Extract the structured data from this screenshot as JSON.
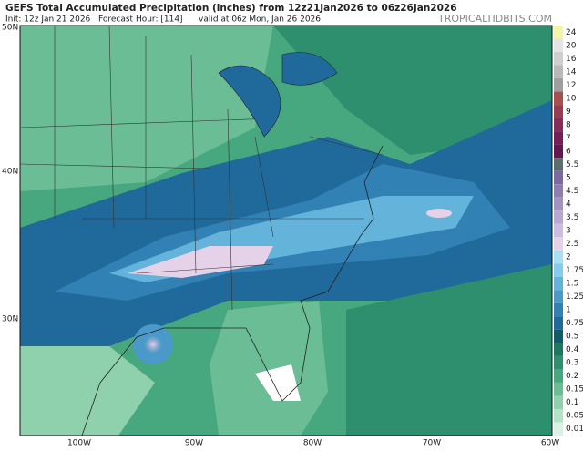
{
  "header": {
    "title": "GEFS Total Accumulated Precipitation (inches) from 12z21Jan2026 to 06z26Jan2026",
    "init": "Init: 12z Jan 21 2026",
    "forecast_hour": "Forecast Hour: [114]",
    "valid": "valid at 06z Mon, Jan 26 2026",
    "site": "TROPICALTIDBITS.COM"
  },
  "axes": {
    "lat_labels": [
      "50N",
      "40N",
      "30N"
    ],
    "lon_labels": [
      "100W",
      "90W",
      "80W",
      "70W",
      "60W"
    ]
  },
  "legend": {
    "levels": [
      24,
      20,
      16,
      14,
      12,
      10,
      9,
      8,
      7,
      6,
      5.5,
      5,
      4.5,
      4,
      3.5,
      3,
      2.5,
      2,
      1.75,
      1.5,
      1.25,
      1,
      0.75,
      0.5,
      0.4,
      0.3,
      0.2,
      0.15,
      0.1,
      0.05,
      0.01
    ],
    "colors": [
      "#f4f4a8",
      "#e4e4e4",
      "#cfcfcf",
      "#b9b9b9",
      "#9e9e9e",
      "#a85050",
      "#983c52",
      "#862c58",
      "#751f5a",
      "#641650",
      "#5c6e6c",
      "#7b6aa0",
      "#8e7eb0",
      "#a192c0",
      "#b6a8d0",
      "#cbbde0",
      "#e6d2e8",
      "#a8e0f2",
      "#84cceb",
      "#64b3da",
      "#4a99c8",
      "#3181b4",
      "#20699b",
      "#125a68",
      "#1e775f",
      "#2e8f6f",
      "#47a77f",
      "#6bbd95",
      "#8fd0ad",
      "#b3e2c7",
      "#d9f2e4"
    ]
  }
}
